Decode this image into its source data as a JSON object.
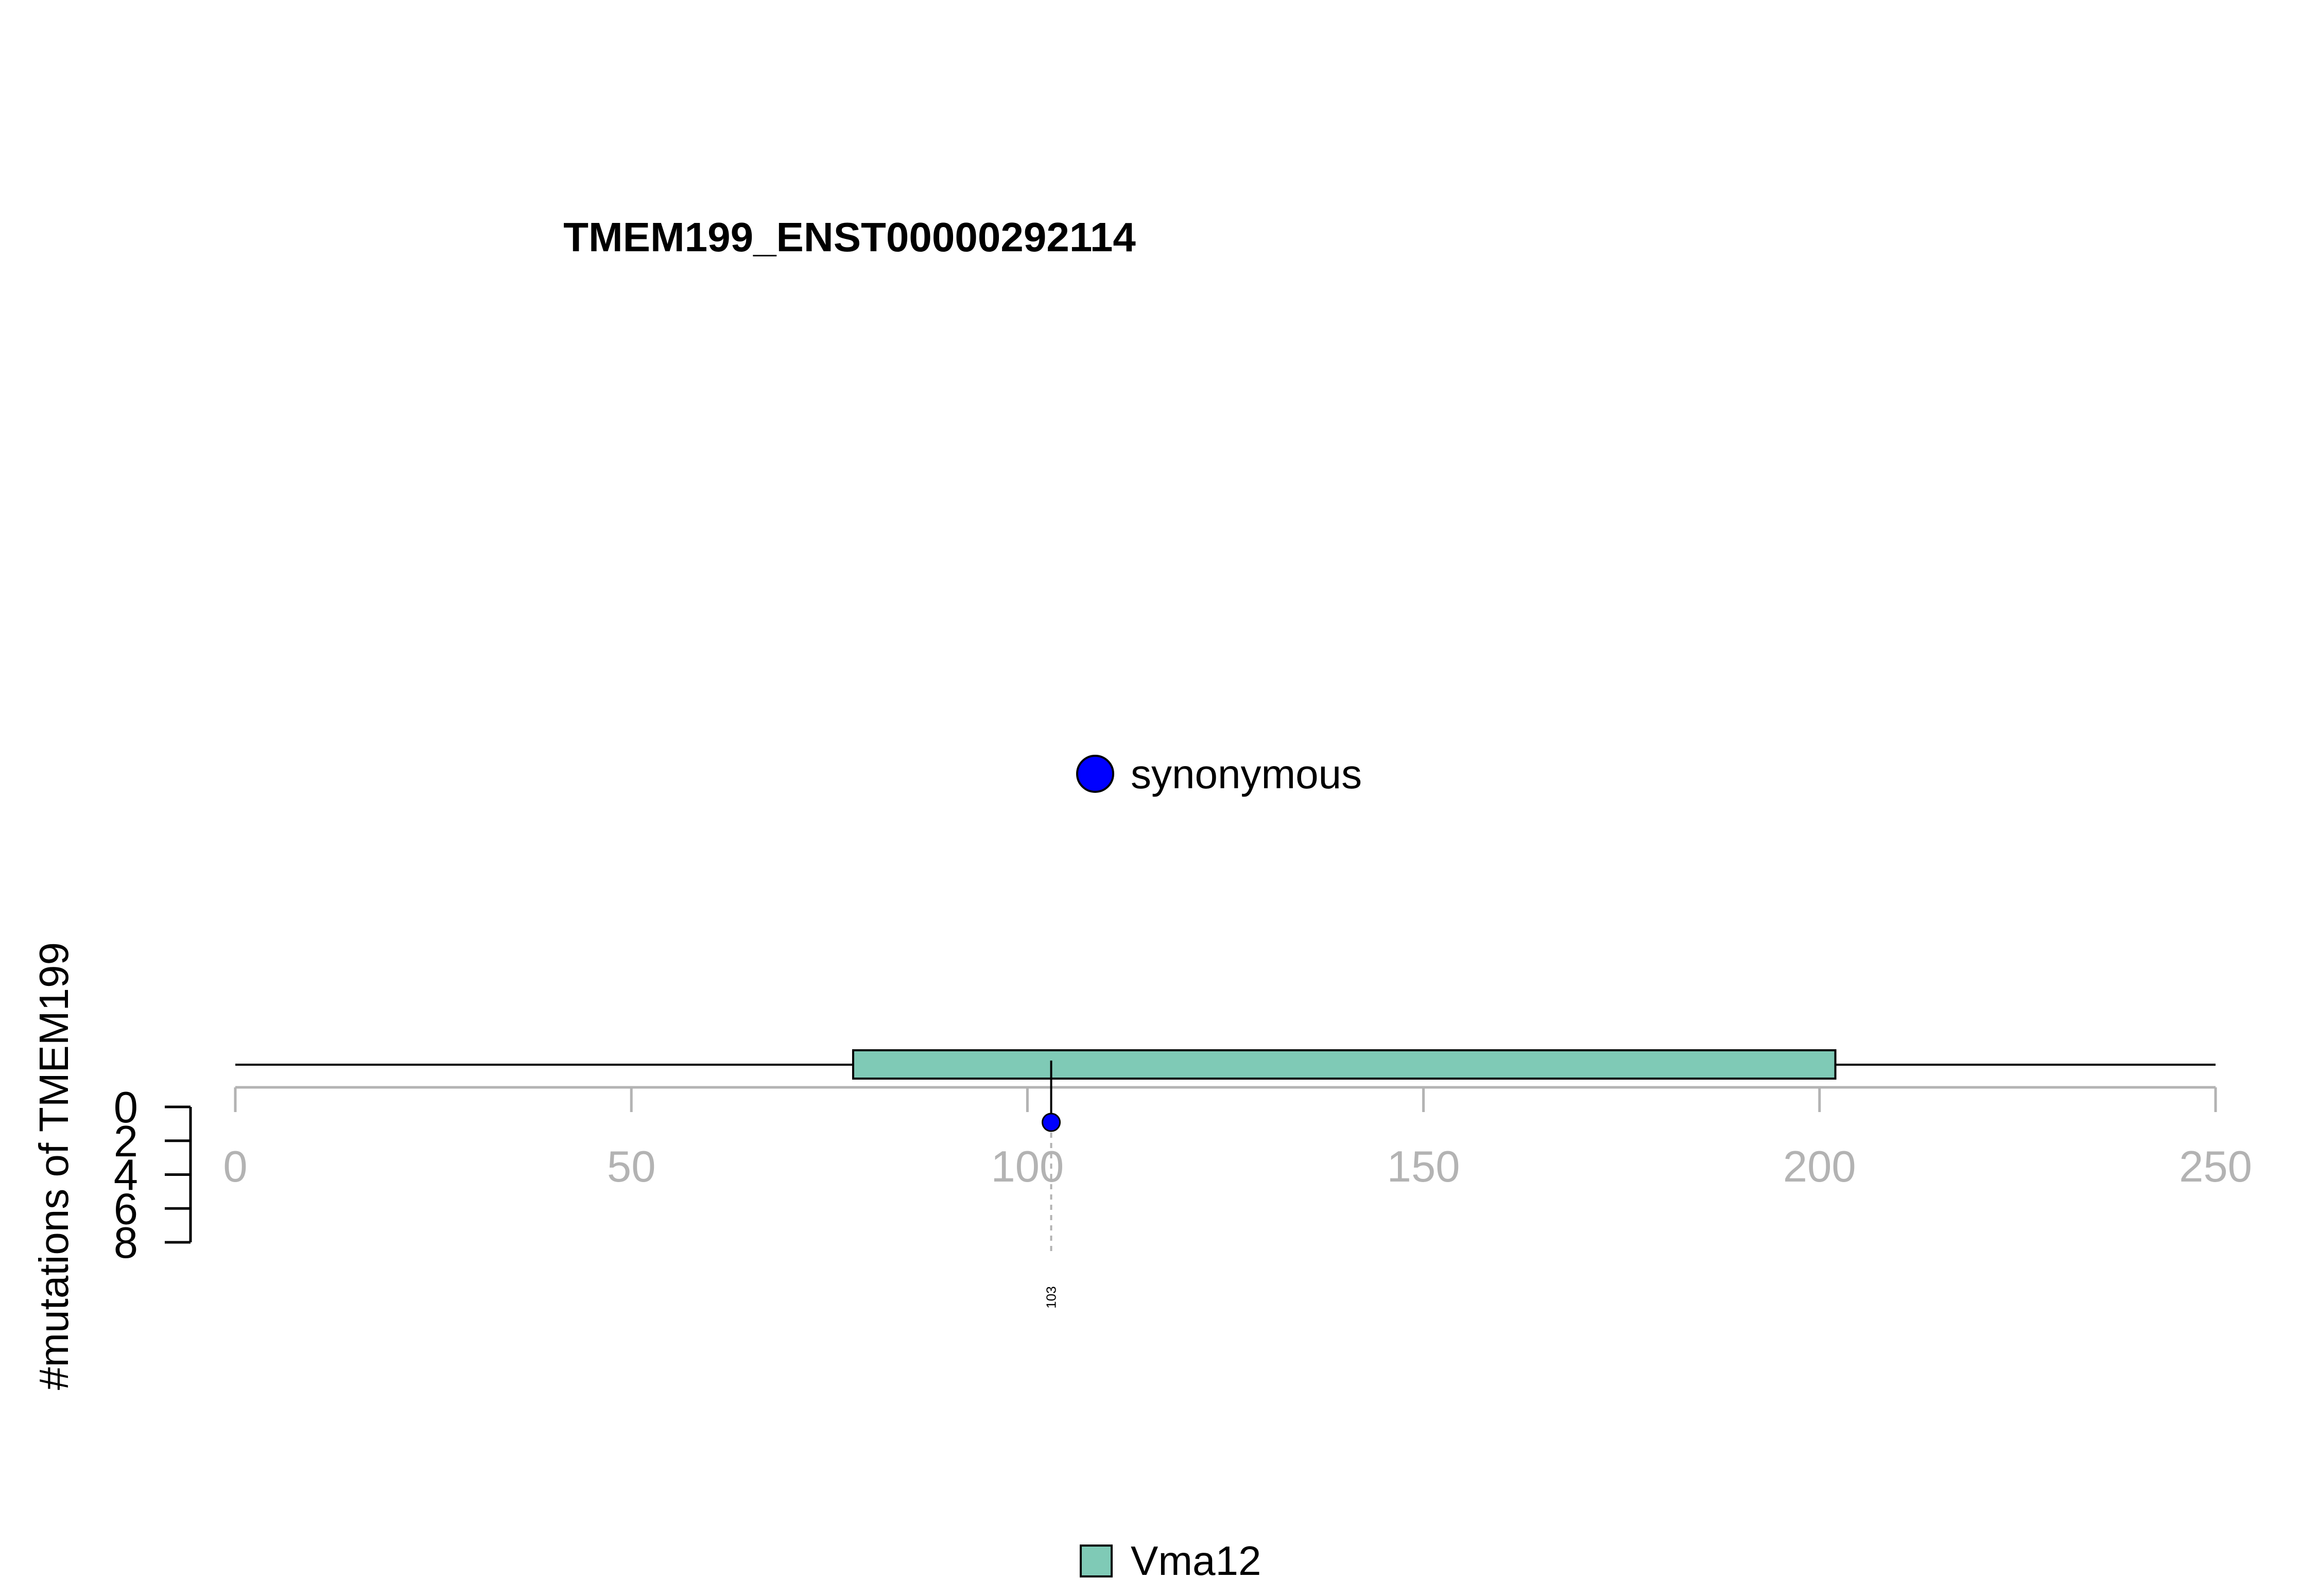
{
  "chart_data": {
    "type": "lollipop",
    "title": "TMEM199_ENST00000292114",
    "ylabel": "#mutations of TMEM199",
    "protein_length": 250,
    "xlim": [
      0,
      250
    ],
    "xticks": [
      0,
      50,
      100,
      150,
      200,
      250
    ],
    "yticks": [
      0,
      2,
      4,
      6,
      8
    ],
    "ylim": [
      0,
      8
    ],
    "domains": [
      {
        "name": "Vma12",
        "start": 78,
        "end": 202,
        "color": "#7fcab6"
      }
    ],
    "mutations": [
      {
        "position": 103,
        "label": "103",
        "count": 1,
        "type": "synonymous",
        "color": "#0000ff"
      }
    ],
    "mutation_legend": [
      {
        "label": "synonymous",
        "color": "#0000ff"
      }
    ],
    "domain_legend": [
      {
        "label": "Vma12",
        "color": "#7fcab6"
      }
    ]
  }
}
